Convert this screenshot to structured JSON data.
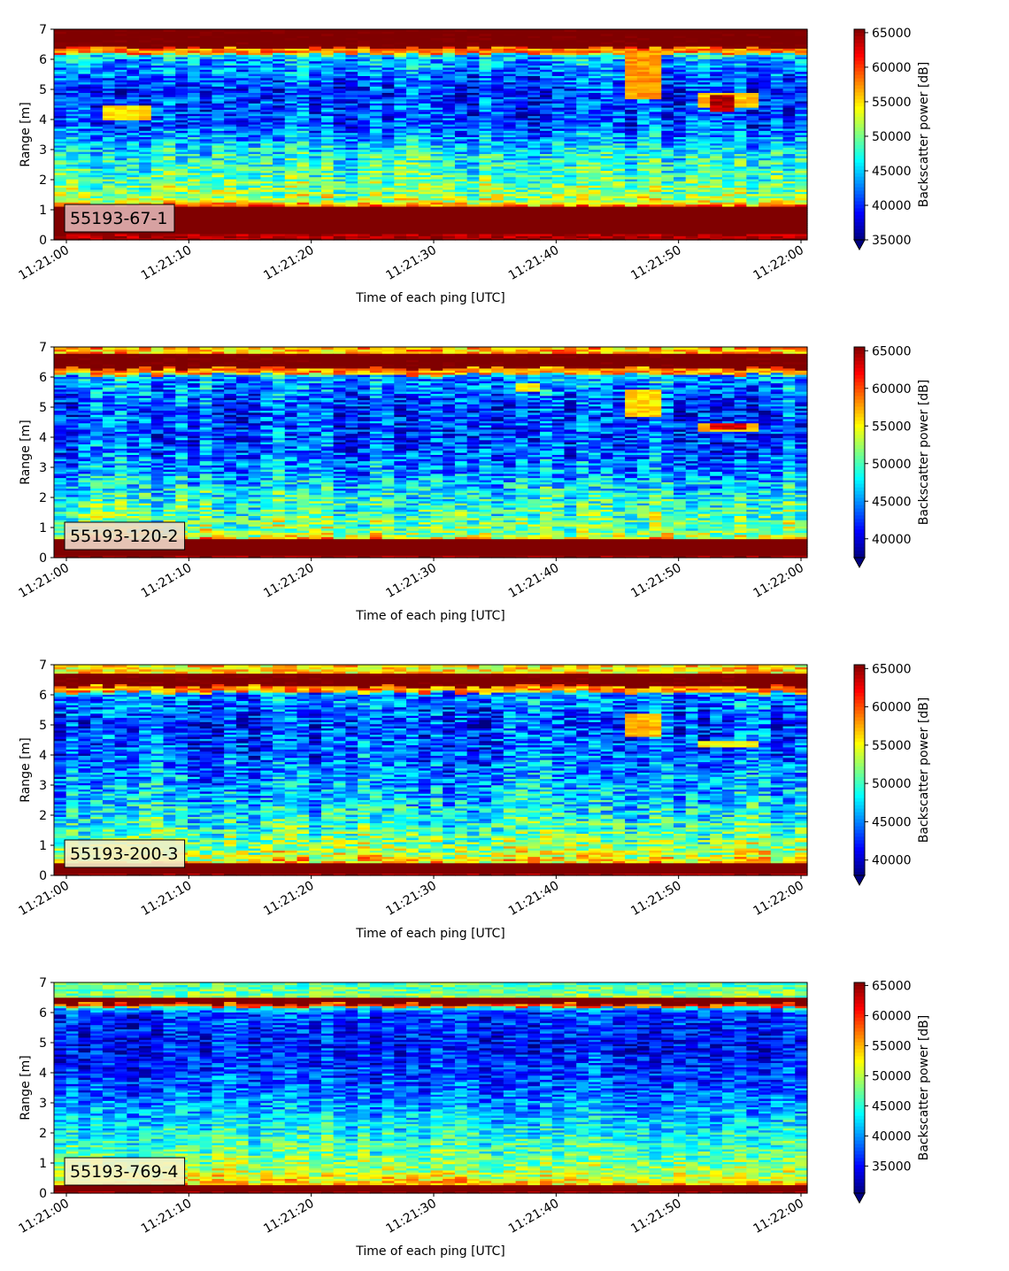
{
  "chart_data": [
    {
      "type": "heatmap",
      "label": "55193-67-1",
      "label_box_color": "#e0b3b3",
      "xlabel": "Time of each ping [UTC]",
      "ylabel": "Range [m]",
      "xlim": [
        "11:21:00",
        "11:22:00"
      ],
      "ylim": [
        0,
        7
      ],
      "xticks": [
        "11:21:00",
        "11:21:10",
        "11:21:20",
        "11:21:30",
        "11:21:40",
        "11:21:50",
        "11:22:00"
      ],
      "yticks": [
        "0",
        "1",
        "2",
        "3",
        "4",
        "5",
        "6",
        "7"
      ],
      "colorbar": {
        "label": "Backscatter power [dB]",
        "min": 35000,
        "max": 65500,
        "extend": "min",
        "ticks": [
          "35000",
          "40000",
          "45000",
          "50000",
          "55000",
          "60000",
          "65000"
        ],
        "tick_values": [
          35000,
          40000,
          45000,
          50000,
          55000,
          60000,
          65000
        ]
      },
      "features": {
        "bottom_band_m": [
          0.2,
          1.1
        ],
        "surface_band_m": [
          6.4,
          7.0
        ],
        "surface_edge_m": 6.2,
        "background_profile": [
          [
            0,
            62000
          ],
          [
            1.1,
            60000
          ],
          [
            1.3,
            52000
          ],
          [
            2.0,
            49000
          ],
          [
            3.0,
            46000
          ],
          [
            3.8,
            41000
          ],
          [
            5.0,
            40000
          ],
          [
            6.0,
            44000
          ],
          [
            6.3,
            50000
          ]
        ],
        "targets": [
          {
            "t": [
              "11:21:03",
              "11:21:07"
            ],
            "range_m": [
              4.0,
              4.5
            ],
            "value": 55000
          },
          {
            "t": [
              "11:21:45",
              "11:21:48"
            ],
            "range_m": [
              4.7,
              6.2
            ],
            "value": 57000
          },
          {
            "t": [
              "11:21:51",
              "11:21:56"
            ],
            "range_m": [
              4.4,
              4.9
            ],
            "value": 56000
          },
          {
            "t": [
              "11:21:52",
              "11:21:54"
            ],
            "range_m": [
              4.3,
              4.8
            ],
            "value": 64000
          }
        ]
      }
    },
    {
      "type": "heatmap",
      "label": "55193-120-2",
      "label_box_color": "#f0d8c8",
      "xlabel": "Time of each ping [UTC]",
      "ylabel": "Range [m]",
      "xlim": [
        "11:21:00",
        "11:22:00"
      ],
      "ylim": [
        0,
        7
      ],
      "xticks": [
        "11:21:00",
        "11:21:10",
        "11:21:20",
        "11:21:30",
        "11:21:40",
        "11:21:50",
        "11:22:00"
      ],
      "yticks": [
        "0",
        "1",
        "2",
        "3",
        "4",
        "5",
        "6",
        "7"
      ],
      "colorbar": {
        "label": "Backscatter power [dB]",
        "min": 37500,
        "max": 65500,
        "extend": "min",
        "ticks": [
          "40000",
          "45000",
          "50000",
          "55000",
          "60000",
          "65000"
        ],
        "tick_values": [
          40000,
          45000,
          50000,
          55000,
          60000,
          65000
        ]
      },
      "features": {
        "bottom_band_m": [
          0.1,
          0.6
        ],
        "surface_band_m": [
          6.3,
          6.8
        ],
        "surface_edge_m": 6.1,
        "background_profile": [
          [
            0,
            62000
          ],
          [
            0.6,
            56000
          ],
          [
            0.9,
            52000
          ],
          [
            2.0,
            49000
          ],
          [
            3.0,
            45000
          ],
          [
            4.0,
            43000
          ],
          [
            5.0,
            43000
          ],
          [
            6.0,
            46000
          ],
          [
            6.2,
            51000
          ]
        ],
        "targets": [
          {
            "t": [
              "11:21:36",
              "11:21:38"
            ],
            "range_m": [
              5.5,
              5.8
            ],
            "value": 55000
          },
          {
            "t": [
              "11:21:45",
              "11:21:48"
            ],
            "range_m": [
              4.7,
              5.6
            ],
            "value": 56000
          },
          {
            "t": [
              "11:21:51",
              "11:21:56"
            ],
            "range_m": [
              4.2,
              4.5
            ],
            "value": 57000
          },
          {
            "t": [
              "11:21:52",
              "11:21:55"
            ],
            "range_m": [
              4.25,
              4.45
            ],
            "value": 63000
          }
        ]
      }
    },
    {
      "type": "heatmap",
      "label": "55193-200-3",
      "label_box_color": "#f5f0c8",
      "xlabel": "Time of each ping [UTC]",
      "ylabel": "Range [m]",
      "xlim": [
        "11:21:00",
        "11:22:00"
      ],
      "ylim": [
        0,
        7
      ],
      "xticks": [
        "11:21:00",
        "11:21:10",
        "11:21:20",
        "11:21:30",
        "11:21:40",
        "11:21:50",
        "11:22:00"
      ],
      "yticks": [
        "0",
        "1",
        "2",
        "3",
        "4",
        "5",
        "6",
        "7"
      ],
      "colorbar": {
        "label": "Backscatter power [dB]",
        "min": 38000,
        "max": 65500,
        "extend": "min",
        "ticks": [
          "40000",
          "45000",
          "50000",
          "55000",
          "60000",
          "65000"
        ],
        "tick_values": [
          40000,
          45000,
          50000,
          55000,
          60000,
          65000
        ]
      },
      "features": {
        "bottom_band_m": [
          0.1,
          0.4
        ],
        "surface_band_m": [
          6.3,
          6.7
        ],
        "surface_edge_m": 6.1,
        "background_profile": [
          [
            0,
            60000
          ],
          [
            0.4,
            56000
          ],
          [
            0.8,
            53000
          ],
          [
            2.0,
            48000
          ],
          [
            3.0,
            46000
          ],
          [
            4.0,
            44000
          ],
          [
            5.0,
            43000
          ],
          [
            6.0,
            45000
          ],
          [
            6.2,
            50000
          ]
        ],
        "targets": [
          {
            "t": [
              "11:21:45",
              "11:21:48"
            ],
            "range_m": [
              4.6,
              5.4
            ],
            "value": 57000
          },
          {
            "t": [
              "11:21:51",
              "11:21:56"
            ],
            "range_m": [
              4.25,
              4.5
            ],
            "value": 55000
          }
        ]
      }
    },
    {
      "type": "heatmap",
      "label": "55193-769-4",
      "label_box_color": "#f8f2c8",
      "xlabel": "Time of each ping [UTC]",
      "ylabel": "Range [m]",
      "xlim": [
        "11:21:00",
        "11:22:00"
      ],
      "ylim": [
        0,
        7
      ],
      "xticks": [
        "11:21:00",
        "11:21:10",
        "11:21:20",
        "11:21:30",
        "11:21:40",
        "11:21:50",
        "11:22:00"
      ],
      "yticks": [
        "0",
        "1",
        "2",
        "3",
        "4",
        "5",
        "6",
        "7"
      ],
      "colorbar": {
        "label": "Backscatter power [dB]",
        "min": 30500,
        "max": 65500,
        "extend": "min",
        "ticks": [
          "35000",
          "40000",
          "45000",
          "50000",
          "55000",
          "60000",
          "65000"
        ],
        "tick_values": [
          35000,
          40000,
          45000,
          50000,
          55000,
          60000,
          65000
        ]
      },
      "features": {
        "bottom_band_m": [
          0.1,
          0.3
        ],
        "surface_band_m": [
          6.3,
          6.5
        ],
        "surface_edge_m": 6.2,
        "background_profile": [
          [
            0,
            56000
          ],
          [
            0.3,
            54000
          ],
          [
            0.8,
            49000
          ],
          [
            1.5,
            46000
          ],
          [
            2.5,
            42000
          ],
          [
            3.5,
            38000
          ],
          [
            5.0,
            35000
          ],
          [
            6.0,
            37000
          ],
          [
            6.2,
            44000
          ],
          [
            7.0,
            40000
          ]
        ],
        "targets": []
      }
    }
  ]
}
